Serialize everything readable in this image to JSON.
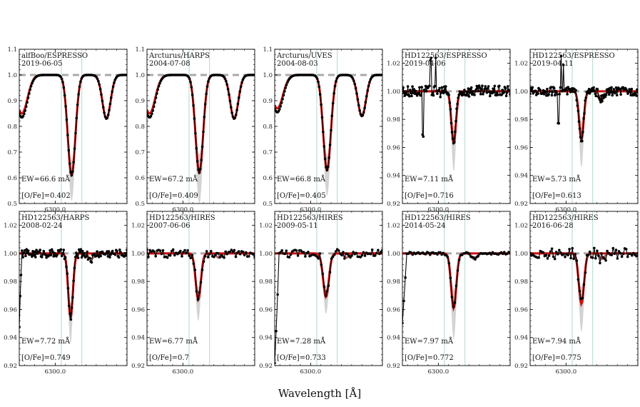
{
  "figure": {
    "xlabel": "Wavelength [Å]"
  },
  "colors": {
    "model": "#cc1111",
    "data": "#000000",
    "baseline": "#aaaaaa",
    "band": "#d3d3d3",
    "vline": "#a8d5c0",
    "blend": "#b85c5c"
  },
  "chart_data": [
    {
      "type": "line",
      "label": "alfBoo/ESPRESSO",
      "date": "2019-06-05",
      "ew": "EW=66.6 mÅ",
      "ofe": "[O/Fe]=0.402",
      "ylim": [
        0.5,
        1.1
      ],
      "yticks": [
        "0.5",
        "0.6",
        "0.7",
        "0.8",
        "0.9",
        "1.0",
        "1.1"
      ],
      "xlim": [
        6299.3,
        6301.4
      ],
      "xtick": "6300.0",
      "grid": false,
      "legend": "none",
      "lines": [
        {
          "c": 6300.32,
          "d": 0.39,
          "s": 0.075
        },
        {
          "c": 6299.35,
          "d": 0.15,
          "s": 0.11
        },
        {
          "c": 6301.0,
          "d": 0.17,
          "s": 0.08
        }
      ],
      "bands": [
        [
          6300.32,
          0.1
        ]
      ],
      "vlines": [
        6300.12,
        6300.52
      ],
      "style": "broad",
      "curve": "single",
      "noise": 0.0
    },
    {
      "type": "line",
      "label": "Arcturus/HARPS",
      "date": "2004-07-08",
      "ew": "EW=67.2 mÅ",
      "ofe": "[O/Fe]=0.409",
      "ylim": [
        0.5,
        1.1
      ],
      "yticks": [
        "0.5",
        "0.6",
        "0.7",
        "0.8",
        "0.9",
        "1.0",
        "1.1"
      ],
      "xlim": [
        6299.3,
        6301.4
      ],
      "xtick": "6300.0",
      "grid": false,
      "legend": "none",
      "lines": [
        {
          "c": 6300.32,
          "d": 0.38,
          "s": 0.075
        },
        {
          "c": 6299.35,
          "d": 0.15,
          "s": 0.11
        },
        {
          "c": 6301.0,
          "d": 0.17,
          "s": 0.08
        }
      ],
      "bands": [
        [
          6300.32,
          0.12
        ]
      ],
      "vlines": [
        6300.12,
        6300.52
      ],
      "style": "broad",
      "curve": "single",
      "noise": 0.0
    },
    {
      "type": "line",
      "label": "Arcturus/UVES",
      "date": "2004-08-03",
      "ew": "EW=66.8 mÅ",
      "ofe": "[O/Fe]=0.405",
      "ylim": [
        0.5,
        1.1
      ],
      "yticks": [
        "0.5",
        "0.6",
        "0.7",
        "0.8",
        "0.9",
        "1.0",
        "1.1"
      ],
      "xlim": [
        6299.3,
        6301.4
      ],
      "xtick": "6300.0",
      "grid": false,
      "legend": "none",
      "lines": [
        {
          "c": 6300.32,
          "d": 0.37,
          "s": 0.075
        },
        {
          "c": 6299.35,
          "d": 0.13,
          "s": 0.11
        },
        {
          "c": 6301.0,
          "d": 0.16,
          "s": 0.08
        }
      ],
      "bands": [
        [
          6300.32,
          0.1
        ]
      ],
      "vlines": [
        6300.12,
        6300.52
      ],
      "style": "broad",
      "curve": "single",
      "noise": 0.0
    },
    {
      "type": "line",
      "label": "HD122563/ESPRESSO",
      "date": "2019-04-06",
      "ew": "EW=7.11 mÅ",
      "ofe": "[O/Fe]=0.716",
      "ylim": [
        0.92,
        1.03
      ],
      "yticks": [
        "0.92",
        "0.94",
        "0.96",
        "0.98",
        "1.00",
        "1.02"
      ],
      "xlim": [
        6299.3,
        6301.4
      ],
      "xtick": "6300.0",
      "grid": false,
      "legend": "none",
      "lines": [
        {
          "c": 6300.3,
          "d": 0.037,
          "s": 0.045
        }
      ],
      "bands": [
        [
          6300.3,
          0.02
        ]
      ],
      "vlines": [
        6300.12,
        6300.52
      ],
      "style": "noisy",
      "curve": "fullfit",
      "noise": 0.004,
      "spikes": [
        [
          6299.85,
          0.025
        ],
        [
          6299.95,
          0.022
        ],
        [
          6299.7,
          -0.03
        ]
      ]
    },
    {
      "type": "line",
      "label": "HD122563/ESPRESSO",
      "date": "2019-04-11",
      "ew": "EW=5.73 mÅ",
      "ofe": "[O/Fe]=0.613",
      "ylim": [
        0.92,
        1.03
      ],
      "yticks": [
        "0.92",
        "0.94",
        "0.96",
        "0.98",
        "1.00",
        "1.02"
      ],
      "xlim": [
        6299.3,
        6301.4
      ],
      "xtick": "6300.0",
      "grid": false,
      "legend": "none",
      "lines": [
        {
          "c": 6300.3,
          "d": 0.034,
          "s": 0.045
        },
        {
          "c": 6300.7,
          "d": 0.006,
          "s": 0.05
        }
      ],
      "bands": [
        [
          6300.3,
          0.02
        ]
      ],
      "vlines": [
        6300.12,
        6300.52
      ],
      "style": "noisy",
      "curve": "fullfit",
      "noise": 0.003,
      "spikes": [
        [
          6299.9,
          0.027
        ],
        [
          6299.95,
          0.02
        ],
        [
          6299.85,
          -0.02
        ]
      ]
    },
    {
      "type": "line",
      "label": "HD122563/HARPS",
      "date": "2008-02-24",
      "ew": "EW=7.72 mÅ",
      "ofe": "[O/Fe]=0.749",
      "ylim": [
        0.92,
        1.03
      ],
      "yticks": [
        "0.92",
        "0.94",
        "0.96",
        "0.98",
        "1.00",
        "1.02"
      ],
      "xlim": [
        6299.3,
        6301.4
      ],
      "xtick": "6300.0",
      "grid": false,
      "legend": "none",
      "lines": [
        {
          "c": 6300.3,
          "d": 0.046,
          "s": 0.045
        },
        {
          "c": 6300.7,
          "d": 0.004,
          "s": 0.05
        }
      ],
      "bands": [
        [
          6300.3,
          0.018
        ]
      ],
      "vlines": [
        6300.12,
        6300.52
      ],
      "style": "dense",
      "curve": "fullfit",
      "noise": 0.003,
      "edge": -0.05
    },
    {
      "type": "line",
      "label": "HD122563/HIRES",
      "date": "2007-06-06",
      "ew": "EW=6.77 mÅ",
      "ofe": "[O/Fe]=0.7",
      "ylim": [
        0.92,
        1.03
      ],
      "yticks": [
        "0.92",
        "0.94",
        "0.96",
        "0.98",
        "1.00",
        "1.02"
      ],
      "xlim": [
        6299.3,
        6301.4
      ],
      "xtick": "6300.0",
      "grid": false,
      "legend": "none",
      "lines": [
        {
          "c": 6300.3,
          "d": 0.033,
          "s": 0.05
        },
        {
          "c": 6300.7,
          "d": 0.003,
          "s": 0.05
        }
      ],
      "bands": [
        [
          6300.3,
          0.015
        ]
      ],
      "vlines": [
        6300.12,
        6300.52
      ],
      "style": "sparse",
      "curve": "fullfit",
      "noise": 0.003
    },
    {
      "type": "line",
      "label": "HD122563/HIRES",
      "date": "2009-05-11",
      "ew": "EW=7.28 mÅ",
      "ofe": "[O/Fe]=0.733",
      "ylim": [
        0.92,
        1.03
      ],
      "yticks": [
        "0.92",
        "0.94",
        "0.96",
        "0.98",
        "1.00",
        "1.02"
      ],
      "xlim": [
        6299.3,
        6301.4
      ],
      "xtick": "6300.0",
      "grid": false,
      "legend": "none",
      "lines": [
        {
          "c": 6300.3,
          "d": 0.031,
          "s": 0.055
        },
        {
          "c": 6300.7,
          "d": 0.003,
          "s": 0.05
        }
      ],
      "bands": [
        [
          6300.3,
          0.012
        ]
      ],
      "vlines": [
        6300.12,
        6300.52
      ],
      "style": "sparse",
      "curve": "fullfit",
      "noise": 0.003,
      "edge": -0.08
    },
    {
      "type": "line",
      "label": "HD122563/HIRES",
      "date": "2014-05-24",
      "ew": "EW=7.97 mÅ",
      "ofe": "[O/Fe]=0.772",
      "ylim": [
        0.92,
        1.03
      ],
      "yticks": [
        "0.92",
        "0.94",
        "0.96",
        "0.98",
        "1.00",
        "1.02"
      ],
      "xlim": [
        6299.3,
        6301.4
      ],
      "xtick": "6300.0",
      "grid": false,
      "legend": "none",
      "lines": [
        {
          "c": 6300.3,
          "d": 0.039,
          "s": 0.05
        },
        {
          "c": 6300.7,
          "d": 0.004,
          "s": 0.05
        }
      ],
      "bands": [
        [
          6300.3,
          0.022
        ]
      ],
      "vlines": [
        6300.12,
        6300.52
      ],
      "style": "sparse",
      "curve": "fullfit",
      "noise": 0.001,
      "edge": -0.05
    },
    {
      "type": "line",
      "label": "HD122563/HIRES",
      "date": "2016-06-28",
      "ew": "EW=7.94 mÅ",
      "ofe": "[O/Fe]=0.775",
      "ylim": [
        0.92,
        1.03
      ],
      "yticks": [
        "0.92",
        "0.94",
        "0.96",
        "0.98",
        "1.00",
        "1.02"
      ],
      "xlim": [
        6299.3,
        6301.4
      ],
      "xtick": "6300.0",
      "grid": false,
      "legend": "none",
      "lines": [
        {
          "c": 6300.3,
          "d": 0.036,
          "s": 0.05
        },
        {
          "c": 6300.7,
          "d": 0.004,
          "s": 0.05
        }
      ],
      "bands": [
        [
          6300.3,
          0.02
        ]
      ],
      "vlines": [
        6300.12,
        6300.52
      ],
      "style": "sparse",
      "curve": "fullfit",
      "noise": 0.004
    }
  ]
}
